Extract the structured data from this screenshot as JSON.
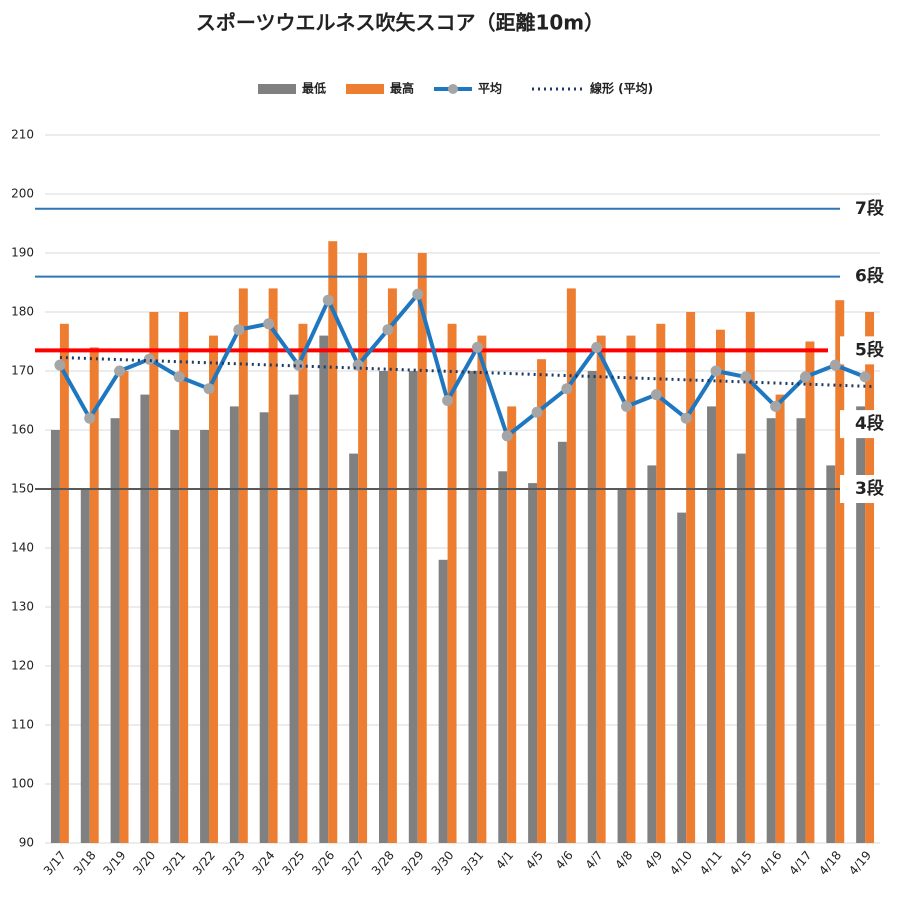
{
  "chart_data": {
    "type": "bar",
    "title": "スポーツウエルネス吹矢スコア（距離10m）",
    "categories": [
      "3/17",
      "3/18",
      "3/19",
      "3/20",
      "3/21",
      "3/22",
      "3/23",
      "3/24",
      "3/25",
      "3/26",
      "3/27",
      "3/28",
      "3/29",
      "3/30",
      "3/31",
      "4/1",
      "4/5",
      "4/6",
      "4/7",
      "4/8",
      "4/9",
      "4/10",
      "4/11",
      "4/15",
      "4/16",
      "4/17",
      "4/18",
      "4/19"
    ],
    "series": [
      {
        "name": "最低",
        "color": "#808080",
        "values": [
          160,
          150,
          162,
          166,
          160,
          160,
          164,
          163,
          166,
          176,
          156,
          170,
          170,
          138,
          170,
          153,
          151,
          158,
          170,
          150,
          154,
          146,
          164,
          156,
          162,
          162,
          154,
          164
        ]
      },
      {
        "name": "最高",
        "color": "#ed7d31",
        "values": [
          178,
          174,
          170,
          180,
          180,
          176,
          184,
          184,
          178,
          192,
          190,
          184,
          190,
          178,
          176,
          164,
          172,
          184,
          176,
          176,
          178,
          180,
          177,
          180,
          166,
          175,
          182,
          180
        ]
      },
      {
        "name": "平均",
        "type": "line",
        "color": "#1f77c0",
        "marker_color": "#a5a5a5",
        "values": [
          171,
          162,
          170,
          172,
          169,
          167,
          177,
          178,
          171,
          182,
          171,
          177,
          183,
          165,
          174,
          159,
          163,
          167,
          174,
          164,
          166,
          162,
          170,
          169,
          164,
          169,
          171,
          169
        ]
      }
    ],
    "trendline": {
      "name": "線形 (平均)",
      "color": "#1f3864",
      "of_series": 2
    },
    "reference_lines": [
      {
        "label": "7段",
        "value": 197.5,
        "color": "#2e75b6",
        "label_color": "#111"
      },
      {
        "label": "6段",
        "value": 186,
        "color": "#2e75b6",
        "label_color": "#111"
      },
      {
        "label": "5段",
        "value": 173.5,
        "color": "#ff0000",
        "label_color": "#2e75b6"
      },
      {
        "label": "4段",
        "value": 161,
        "color": null,
        "label_color": "#111"
      },
      {
        "label": "3段",
        "value": 150,
        "color": "#595959",
        "label_color": "#111"
      }
    ],
    "ylim": [
      90,
      210
    ],
    "yticks": [
      90,
      100,
      110,
      120,
      130,
      140,
      150,
      160,
      170,
      180,
      190,
      200,
      210
    ],
    "grid": true
  }
}
